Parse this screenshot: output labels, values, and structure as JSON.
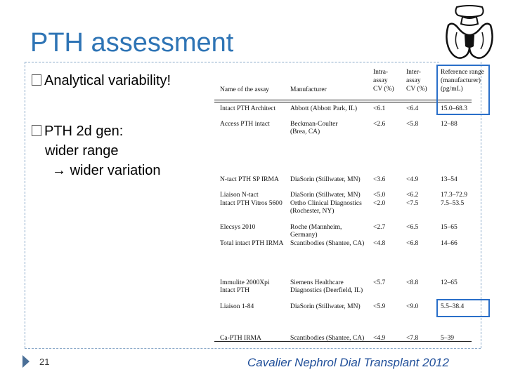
{
  "slide": {
    "title": "PTH assessment",
    "bullets": [
      {
        "text": "Analytical variability!"
      },
      {
        "text": "PTH 2d gen:"
      }
    ],
    "sub_lines": [
      "wider range",
      "wider variation"
    ],
    "page_number": "21",
    "citation": "Cavalier Nephrol Dial Transplant 2012"
  },
  "table": {
    "headers": {
      "assay": "Name of the assay",
      "manufacturer": "Manufacturer",
      "intra": [
        "Intra-",
        "assay",
        "CV (%)"
      ],
      "inter": [
        "Inter-",
        "assay",
        "CV (%)"
      ],
      "ref": [
        "Reference range",
        "(manufacturer)",
        "(pg/mL)"
      ]
    },
    "rows": [
      {
        "assay": [
          "Intact PTH Architect"
        ],
        "manufacturer": [
          "Abbott (Abbott Park, IL)"
        ],
        "intra": "<6.1",
        "inter": "<6.4",
        "ref": "15.0–68.3"
      },
      {
        "assay": [
          "Access PTH intact"
        ],
        "manufacturer": [
          "Beckman-Coulter",
          "(Brea, CA)"
        ],
        "intra": "<2.6",
        "inter": "<5.8",
        "ref": "12–88"
      },
      {
        "assay": [
          "N-tact PTH SP IRMA"
        ],
        "manufacturer": [
          "DiaSorin (Stillwater, MN)"
        ],
        "intra": "<3.6",
        "inter": "<4.9",
        "ref": "13–54"
      },
      {
        "assay": [
          "Liaison N-tact"
        ],
        "manufacturer": [
          "DiaSorin (Stillwater, MN)"
        ],
        "intra": "<5.0",
        "inter": "<6.2",
        "ref": "17.3–72.9"
      },
      {
        "assay": [
          "Intact PTH Vitros 5600"
        ],
        "manufacturer": [
          "Ortho Clinical Diagnostics",
          "(Rochester, NY)"
        ],
        "intra": "<2.0",
        "inter": "<7.5",
        "ref": "7.5–53.5"
      },
      {
        "assay": [
          "Elecsys 2010"
        ],
        "manufacturer": [
          "Roche (Mannheim,",
          "Germany)"
        ],
        "intra": "<2.7",
        "inter": "<6.5",
        "ref": "15–65"
      },
      {
        "assay": [
          "Total intact PTH IRMA"
        ],
        "manufacturer": [
          "Scantibodies (Shantee, CA)"
        ],
        "intra": "<4.8",
        "inter": "<6.8",
        "ref": "14–66"
      },
      {
        "assay": [
          "Immulite 2000Xpi",
          "Intact PTH"
        ],
        "manufacturer": [
          "Siemens Healthcare",
          "Diagnostics (Deerfield, IL)"
        ],
        "intra": "<5.7",
        "inter": "<8.8",
        "ref": "12–65"
      },
      {
        "assay": [
          "Liaison 1-84"
        ],
        "manufacturer": [
          "DiaSorin (Stillwater, MN)"
        ],
        "intra": "<5.9",
        "inter": "<9.0",
        "ref": "5.5–38.4"
      },
      {
        "assay": [
          "Ca-PTH IRMA"
        ],
        "manufacturer": [
          "Scantibodies (Shantee, CA)"
        ],
        "intra": "<4.9",
        "inter": "<7.8",
        "ref": "5–39"
      }
    ]
  },
  "colors": {
    "title": "#2e74b5",
    "highlight_border": "#2a6fc9",
    "citation": "#1f4e99"
  }
}
